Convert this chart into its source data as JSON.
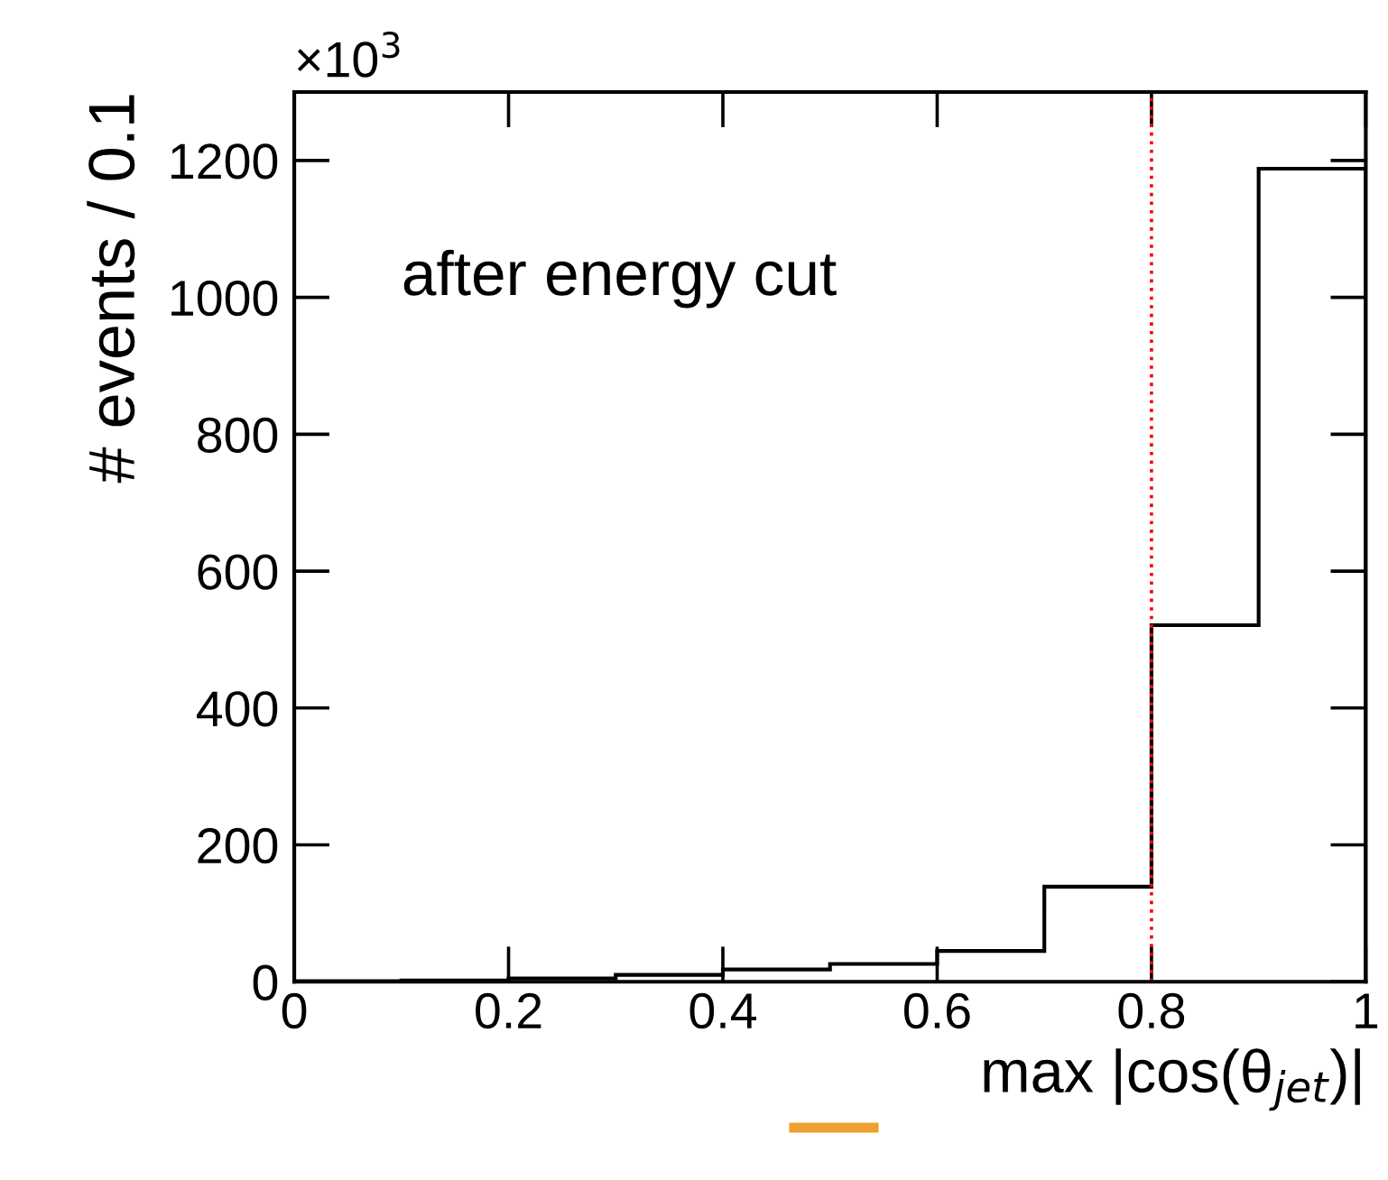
{
  "chart_data": {
    "type": "histogram",
    "xlabel": "max |cos(θ$_{jet}$)|",
    "ylabel": "# events / 0.1",
    "bins": [
      0,
      0.1,
      0.2,
      0.3,
      0.4,
      0.5,
      0.6,
      0.7,
      0.8,
      0.9,
      1.0
    ],
    "values": [
      1,
      2,
      5,
      10,
      18,
      26,
      45,
      139,
      521,
      1188
    ],
    "color": "#000000",
    "xlim": [
      0,
      1
    ],
    "xticks": [
      0,
      0.2,
      0.4,
      0.6,
      0.8,
      1
    ],
    "ylim": [
      0,
      1300
    ],
    "yticks": [
      0,
      200,
      400,
      600,
      800,
      1000,
      1200
    ],
    "ref_lines": [
      {
        "axis": "x",
        "value": 0.8,
        "color": "#ff0000",
        "line_style": "dotted"
      }
    ],
    "annotations": [
      "after energy cut",
      "×10$^{3}$"
    ],
    "grid": false,
    "legend": false
  }
}
